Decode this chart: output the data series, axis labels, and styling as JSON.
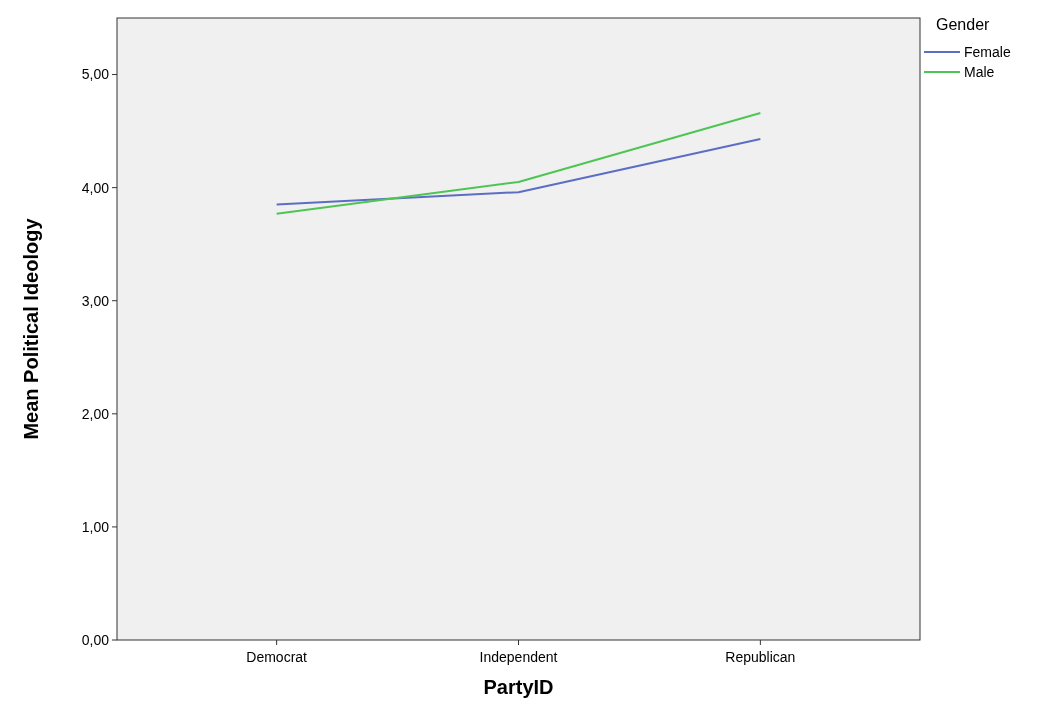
{
  "chart_data": {
    "type": "line",
    "xlabel": "PartyID",
    "ylabel": "Mean Political Ideology",
    "legend_title": "Gender",
    "legend": "top right",
    "grid": false,
    "categories": [
      "Democrat",
      "Independent",
      "Republican"
    ],
    "ylim": [
      0,
      5.5
    ],
    "yticks": [
      {
        "value": 0,
        "label": "0,00"
      },
      {
        "value": 1,
        "label": "1,00"
      },
      {
        "value": 2,
        "label": "2,00"
      },
      {
        "value": 3,
        "label": "3,00"
      },
      {
        "value": 4,
        "label": "4,00"
      },
      {
        "value": 5,
        "label": "5,00"
      }
    ],
    "series": [
      {
        "name": "Female",
        "color": "#5b6ec4",
        "values": [
          3.85,
          3.96,
          4.43
        ]
      },
      {
        "name": "Male",
        "color": "#4ec553",
        "values": [
          3.77,
          4.05,
          4.66
        ]
      }
    ]
  }
}
